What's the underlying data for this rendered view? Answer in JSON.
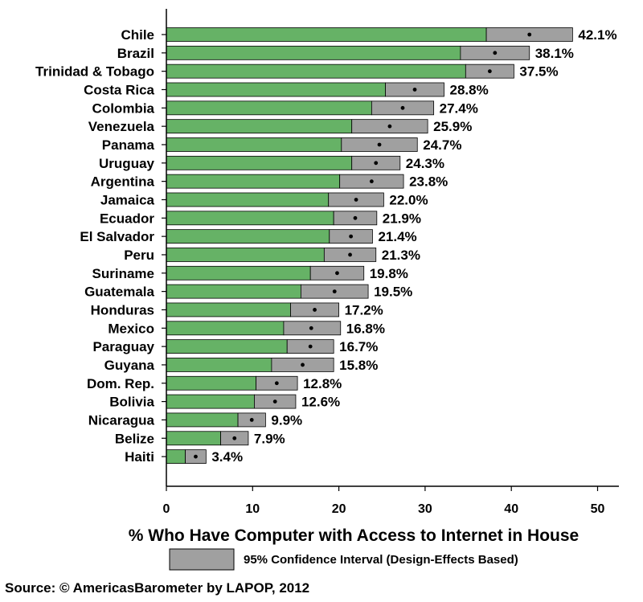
{
  "chart_data": {
    "type": "bar",
    "orientation": "horizontal",
    "categories": [
      "Chile",
      "Brazil",
      "Trinidad & Tobago",
      "Costa Rica",
      "Colombia",
      "Venezuela",
      "Panama",
      "Uruguay",
      "Argentina",
      "Jamaica",
      "Ecuador",
      "El Salvador",
      "Peru",
      "Suriname",
      "Guatemala",
      "Honduras",
      "Mexico",
      "Paraguay",
      "Guyana",
      "Dom. Rep.",
      "Bolivia",
      "Nicaragua",
      "Belize",
      "Haiti"
    ],
    "values": [
      42.1,
      38.1,
      37.5,
      28.8,
      27.4,
      25.9,
      24.7,
      24.3,
      23.8,
      22.0,
      21.9,
      21.4,
      21.3,
      19.8,
      19.5,
      17.2,
      16.8,
      16.7,
      15.8,
      12.8,
      12.6,
      9.9,
      7.9,
      3.4
    ],
    "value_labels": [
      "42.1%",
      "38.1%",
      "37.5%",
      "28.8%",
      "27.4%",
      "25.9%",
      "24.7%",
      "24.3%",
      "23.8%",
      "22.0%",
      "21.9%",
      "21.4%",
      "21.3%",
      "19.8%",
      "19.5%",
      "17.2%",
      "16.8%",
      "16.7%",
      "15.8%",
      "12.8%",
      "12.6%",
      "9.9%",
      "7.9%",
      "3.4%"
    ],
    "ci_low": [
      37.1,
      34.1,
      34.7,
      25.4,
      23.8,
      21.5,
      20.3,
      21.5,
      20.1,
      18.8,
      19.4,
      18.9,
      18.3,
      16.7,
      15.6,
      14.4,
      13.6,
      14.0,
      12.2,
      10.4,
      10.2,
      8.3,
      6.3,
      2.2
    ],
    "ci_high": [
      47.1,
      42.1,
      40.3,
      32.2,
      31.0,
      30.3,
      29.1,
      27.1,
      27.5,
      25.2,
      24.4,
      23.9,
      24.3,
      22.9,
      23.4,
      20.0,
      20.2,
      19.4,
      19.4,
      15.2,
      15.0,
      11.5,
      9.5,
      4.6
    ],
    "xlabel": "% Who Have Computer with Access to Internet in House",
    "xlim": [
      0,
      52
    ],
    "xticks": [
      0,
      10,
      20,
      30,
      40,
      50
    ],
    "tick_labels": [
      "0",
      "10",
      "20",
      "30",
      "40",
      "50"
    ],
    "legend": {
      "label": "95% Confidence Interval (Design-Effects Based)",
      "placement": "bottom"
    },
    "grid": false,
    "colors": {
      "bar": "#66b266",
      "ci": "#a0a0a0",
      "outline": "#000000",
      "point": "#000000"
    }
  },
  "source": "Source: © AmericasBarometer by  LAPOP, 2012"
}
